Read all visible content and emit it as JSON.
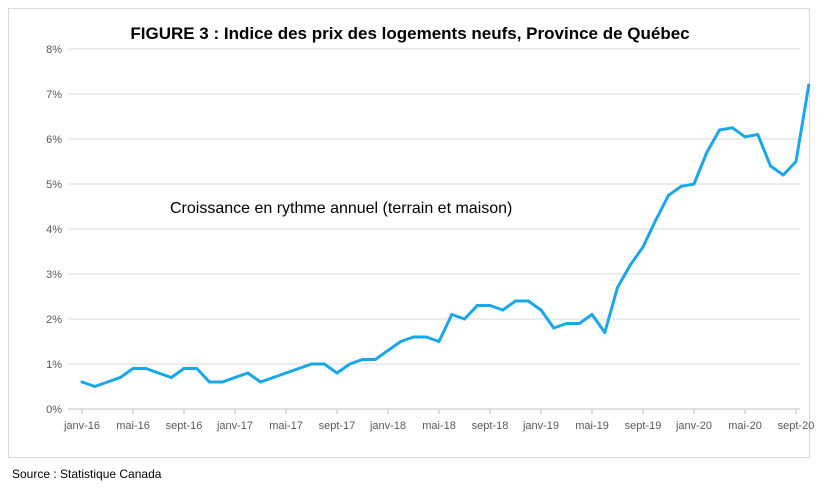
{
  "chart_data": {
    "type": "line",
    "title": "FIGURE 3 : Indice des prix des logements neufs, Province de Québec",
    "annotation": "Croissance en rythme annuel (terrain et maison)",
    "source": "Source : Statistique Canada",
    "xlabel": "",
    "ylabel": "",
    "ylim": [
      0,
      8
    ],
    "yticks": [
      "0%",
      "1%",
      "2%",
      "3%",
      "4%",
      "5%",
      "6%",
      "7%",
      "8%"
    ],
    "xtick_labels": [
      "janv-16",
      "mai-16",
      "sept-16",
      "janv-17",
      "mai-17",
      "sept-17",
      "janv-18",
      "mai-18",
      "sept-18",
      "janv-19",
      "mai-19",
      "sept-19",
      "janv-20",
      "mai-20",
      "sept-20"
    ],
    "grid": true,
    "legend": "none",
    "color": "#1aa7e8",
    "series": [
      {
        "name": "Croissance en rythme annuel (terrain et maison)",
        "values": [
          0.6,
          0.5,
          0.6,
          0.7,
          0.9,
          0.9,
          0.8,
          0.7,
          0.9,
          0.9,
          0.6,
          0.6,
          0.7,
          0.8,
          0.6,
          0.7,
          0.8,
          0.9,
          1.0,
          1.0,
          0.8,
          1.0,
          1.1,
          1.1,
          1.3,
          1.5,
          1.6,
          1.6,
          1.5,
          2.1,
          2.0,
          2.3,
          2.3,
          2.2,
          2.4,
          2.4,
          2.2,
          1.8,
          1.9,
          1.9,
          2.1,
          1.7,
          2.7,
          3.2,
          3.6,
          4.2,
          4.75,
          4.95,
          5.0,
          5.7,
          6.2,
          6.25,
          6.05,
          6.1,
          5.4,
          5.2,
          5.5,
          7.2
        ]
      }
    ]
  }
}
